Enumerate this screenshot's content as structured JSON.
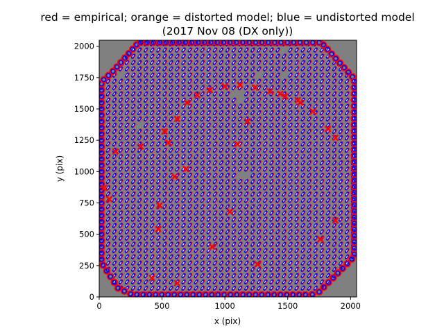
{
  "chart_data": {
    "type": "scatter",
    "title": "red = empirical; orange = distorted model; blue = undistorted model",
    "subtitle": "(2017 Nov 08 (DX only))",
    "xlabel": "x (pix)",
    "ylabel": "y (pix)",
    "xlim": [
      0,
      2048
    ],
    "ylim": [
      0,
      2048
    ],
    "xticks": [
      0,
      500,
      1000,
      1500,
      2000
    ],
    "yticks": [
      0,
      250,
      500,
      750,
      1000,
      1250,
      1500,
      1750,
      2000
    ],
    "background_color": "#808080",
    "grid": false,
    "legend": "none",
    "series": [
      {
        "name": "empirical",
        "color": "#ff0000"
      },
      {
        "name": "distorted model",
        "color": "#ffa500"
      },
      {
        "name": "undistorted model",
        "color": "#0000ff"
      }
    ],
    "footprint_outline": [
      [
        0,
        300
      ],
      [
        0,
        1700
      ],
      [
        110,
        1800
      ],
      [
        330,
        2048
      ],
      [
        1750,
        2048
      ],
      [
        2048,
        1720
      ],
      [
        2048,
        340
      ],
      [
        1750,
        40
      ],
      [
        1640,
        0
      ],
      [
        300,
        0
      ],
      [
        150,
        70
      ]
    ],
    "grid_spacing": 50,
    "segment_length": 24,
    "empirical_outliers": [
      [
        520,
        1320
      ],
      [
        550,
        1230
      ],
      [
        690,
        1020
      ],
      [
        600,
        960
      ],
      [
        480,
        730
      ],
      [
        470,
        540
      ],
      [
        900,
        400
      ],
      [
        1760,
        460
      ],
      [
        1880,
        610
      ],
      [
        1100,
        1220
      ],
      [
        1180,
        1400
      ],
      [
        1440,
        1620
      ],
      [
        1580,
        1570
      ],
      [
        1700,
        1480
      ],
      [
        1820,
        1340
      ],
      [
        1880,
        1270
      ],
      [
        1260,
        260
      ],
      [
        1040,
        680
      ],
      [
        420,
        150
      ],
      [
        620,
        110
      ],
      [
        330,
        1200
      ],
      [
        130,
        1160
      ],
      [
        80,
        780
      ],
      [
        40,
        870
      ]
    ],
    "empirical_arc": [
      [
        620,
        1420
      ],
      [
        700,
        1550
      ],
      [
        780,
        1610
      ],
      [
        880,
        1650
      ],
      [
        1000,
        1680
      ],
      [
        1120,
        1690
      ],
      [
        1240,
        1670
      ],
      [
        1360,
        1640
      ],
      [
        1480,
        1600
      ],
      [
        1600,
        1550
      ]
    ],
    "gaps": [
      [
        170,
        1780
      ],
      [
        330,
        1380
      ],
      [
        1140,
        960
      ],
      [
        1460,
        1770
      ],
      [
        1460,
        1960
      ],
      [
        1100,
        1600
      ],
      [
        1270,
        1760
      ]
    ]
  }
}
